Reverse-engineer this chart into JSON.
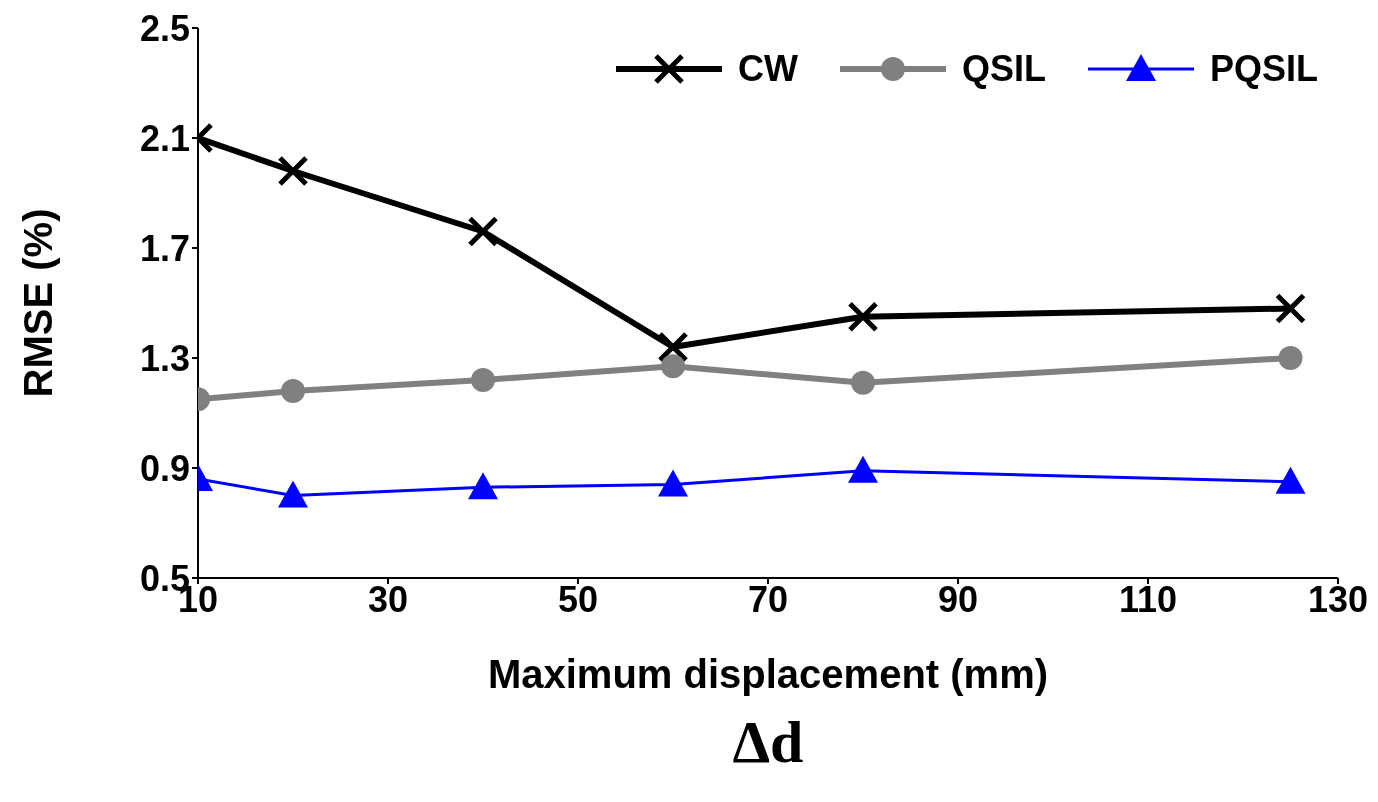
{
  "chart_data": {
    "type": "line",
    "xlabel": "Maximum displacement (mm)",
    "ylabel": "RMSE (%)",
    "annotations": [
      "Δd"
    ],
    "x": [
      10,
      20,
      40,
      60,
      80,
      125
    ],
    "series": [
      {
        "name": "CW",
        "color": "#000000",
        "marker": "cross",
        "values": [
          2.1,
          1.98,
          1.76,
          1.34,
          1.45,
          1.48
        ]
      },
      {
        "name": "QSIL",
        "color": "#808080",
        "marker": "circle",
        "values": [
          1.15,
          1.18,
          1.22,
          1.27,
          1.21,
          1.3
        ]
      },
      {
        "name": "PQSIL",
        "color": "#0000ff",
        "marker": "triangle",
        "values": [
          0.86,
          0.8,
          0.83,
          0.84,
          0.89,
          0.85
        ]
      }
    ],
    "xlim": [
      10,
      130
    ],
    "xticks": [
      10,
      30,
      50,
      70,
      90,
      110,
      130
    ],
    "ylim": [
      0.5,
      2.5
    ],
    "yticks": [
      0.5,
      0.9,
      1.3,
      1.7,
      2.1,
      2.5
    ],
    "grid": false,
    "legend": "top right",
    "line_style": "solid"
  }
}
